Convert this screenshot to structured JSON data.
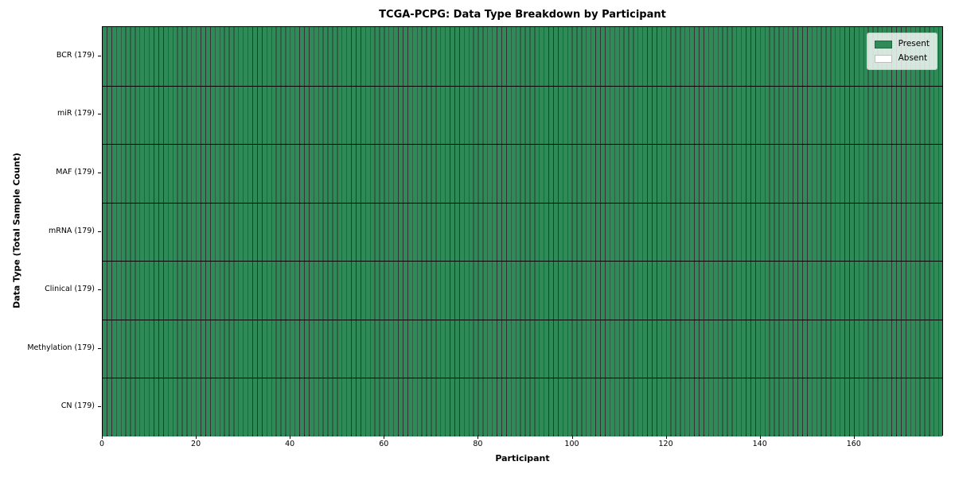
{
  "chart_data": {
    "type": "heatmap",
    "title": "TCGA-PCPG: Data Type Breakdown by Participant",
    "xlabel": "Participant",
    "ylabel": "Data Type (Total Sample Count)",
    "n_participants": 179,
    "x_range": [
      0,
      179
    ],
    "x_ticks": [
      0,
      20,
      40,
      60,
      80,
      100,
      120,
      140,
      160
    ],
    "rows": [
      {
        "label": "BCR (179)",
        "data_type": "BCR",
        "total_samples": 179,
        "present_count": 179,
        "absent_count": 0
      },
      {
        "label": "miR (179)",
        "data_type": "miR",
        "total_samples": 179,
        "present_count": 179,
        "absent_count": 0
      },
      {
        "label": "MAF (179)",
        "data_type": "MAF",
        "total_samples": 179,
        "present_count": 179,
        "absent_count": 0
      },
      {
        "label": "mRNA (179)",
        "data_type": "mRNA",
        "total_samples": 179,
        "present_count": 179,
        "absent_count": 0
      },
      {
        "label": "Clinical (179)",
        "data_type": "Clinical",
        "total_samples": 179,
        "present_count": 179,
        "absent_count": 0
      },
      {
        "label": "Methylation (179)",
        "data_type": "Methylation",
        "total_samples": 179,
        "present_count": 179,
        "absent_count": 0
      },
      {
        "label": "CN (179)",
        "data_type": "CN",
        "total_samples": 179,
        "present_count": 179,
        "absent_count": 0
      }
    ],
    "legend": {
      "position": "upper-right",
      "entries": [
        {
          "label": "Present",
          "color": "#2e8b57"
        },
        {
          "label": "Absent",
          "color": "#ffffff"
        }
      ]
    },
    "colors": {
      "present": "#2e8b57",
      "absent": "#ffffff",
      "grid_line": "rgba(0,0,0,0.8)",
      "row_separator": "#000000"
    },
    "grid": "on",
    "layout": "rows are data types (top to bottom), columns are 179 participants, every cell Present"
  }
}
